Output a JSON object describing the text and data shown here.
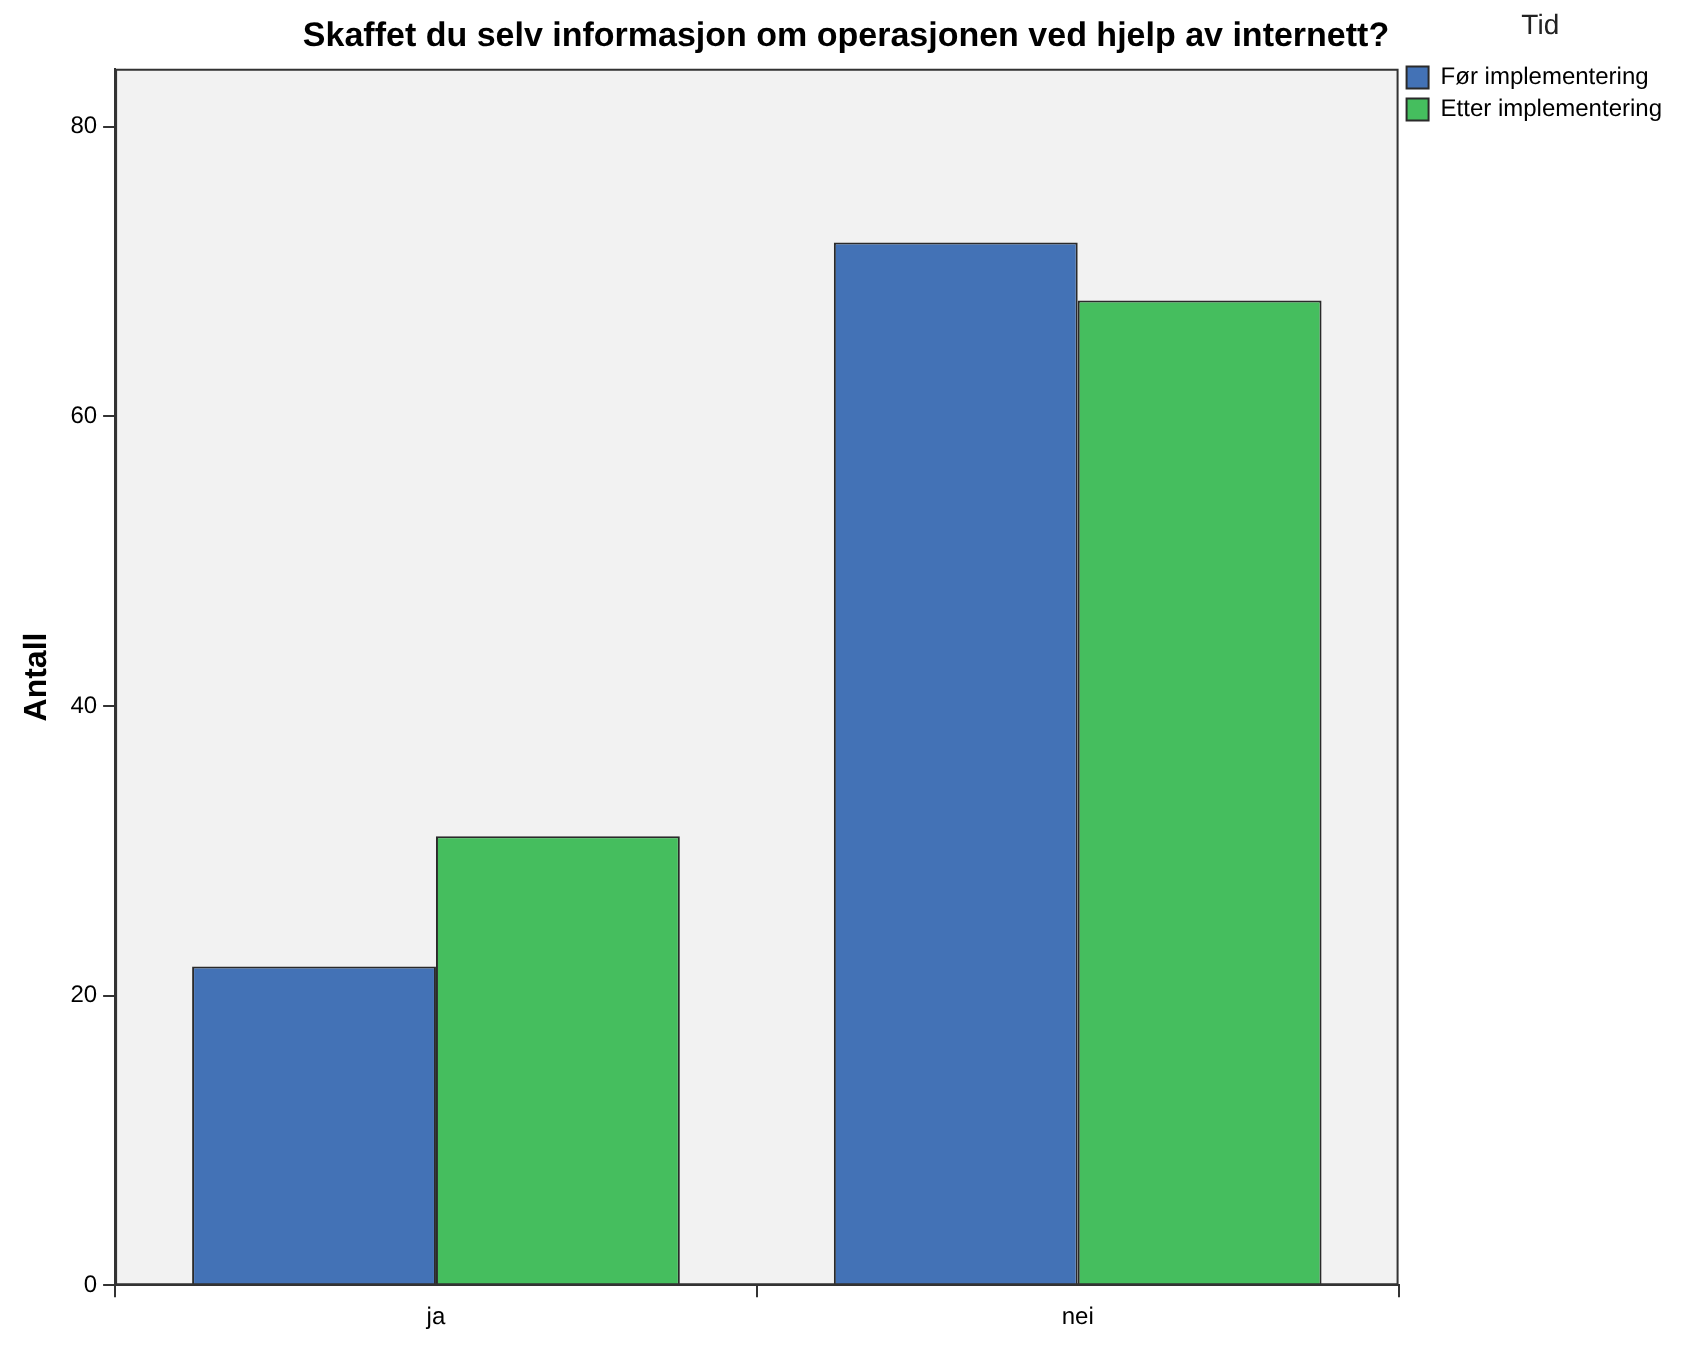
{
  "chart_data": {
    "type": "bar",
    "title": "Skaffet du selv informasjon om operasjonen ved hjelp av internett?",
    "ylabel": "Antall",
    "legend_title": "Tid",
    "categories": [
      "ja",
      "nei"
    ],
    "series": [
      {
        "name": "Før implementering",
        "color": "#4372b6",
        "values": [
          22,
          72
        ]
      },
      {
        "name": "Etter implementering",
        "color": "#45be5e",
        "values": [
          31,
          68
        ]
      }
    ],
    "ylim": [
      0,
      84
    ],
    "yticks": [
      0,
      20,
      40,
      60,
      80
    ],
    "grid": false,
    "legend": "right"
  }
}
